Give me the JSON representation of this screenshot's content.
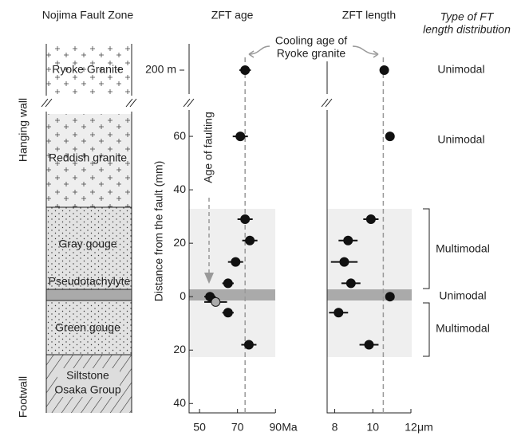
{
  "column": {
    "title": "Nojima Fault Zone",
    "hanging_wall": "Hanging wall",
    "footwall": "Footwall",
    "layers": [
      "Ryoke Granite",
      "Reddish granite",
      "Gray gouge",
      "Pseudotachylyte",
      "Green gouge",
      [
        "Siltstone",
        "Osaka Group"
      ]
    ]
  },
  "chart_data": [
    {
      "type": "scatter",
      "title": "ZFT age",
      "x_unit": "Ma",
      "ylabel": "Distance from the fault (mm)",
      "xlim": [
        44.5,
        92
      ],
      "xticks": [
        50,
        70,
        90
      ],
      "ylim": [
        -43.5,
        73
      ],
      "yticks": [
        60,
        40,
        20,
        0,
        {
          "value": -20,
          "label": "20"
        },
        {
          "value": -40,
          "label": "40"
        }
      ],
      "y_break": {
        "value": 200000,
        "label": "200 m"
      },
      "reference_line": 74,
      "series": [
        {
          "color": "#111111",
          "x": [
            74,
            71.5,
            74,
            76.5,
            69,
            65,
            55.5,
            65,
            76
          ],
          "y": [
            200000,
            60,
            29,
            21,
            13,
            5,
            0,
            -6,
            -18
          ],
          "xerr": [
            3,
            4,
            4,
            4,
            4,
            3,
            3,
            3,
            4
          ]
        },
        {
          "color": "#aaaaaa",
          "x": [
            58.5
          ],
          "y": [
            -2
          ],
          "xerr": [
            6
          ]
        }
      ],
      "annotations": {
        "cooling": [
          "Cooling age of",
          "Ryoke granite"
        ],
        "faulting": "Age of faulting"
      }
    },
    {
      "type": "scatter",
      "title": "ZFT length",
      "x_unit": "μm",
      "xlim": [
        7.6,
        12
      ],
      "xticks": [
        8,
        10,
        12
      ],
      "ylim": [
        -43.5,
        73
      ],
      "y_break": {
        "value": 200000
      },
      "reference_line": 10.55,
      "series": [
        {
          "color": "#111111",
          "x": [
            10.6,
            10.9,
            9.9,
            8.7,
            8.5,
            8.85,
            10.9,
            8.2,
            9.8
          ],
          "y": [
            200000,
            60,
            29,
            21,
            13,
            5,
            0,
            -6,
            -18
          ],
          "xerr": [
            0,
            0,
            0.4,
            0.5,
            0.7,
            0.5,
            0,
            0.5,
            0.5
          ]
        }
      ]
    }
  ],
  "distribution": {
    "title": [
      "Type of FT",
      "length distribution"
    ],
    "labels": [
      "Unimodal",
      "Unimodal",
      "Multimodal",
      "Unimodal",
      "Multimodal"
    ]
  }
}
